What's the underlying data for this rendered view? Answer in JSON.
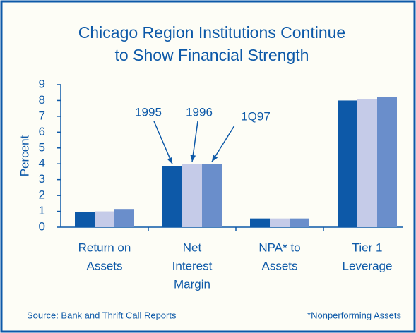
{
  "chart_data": {
    "type": "bar",
    "title": [
      "Chicago Region Institutions Continue",
      "to Show Financial Strength"
    ],
    "y_label": "Percent",
    "categories": [
      [
        "Return on",
        "Assets"
      ],
      [
        "Net",
        "Interest",
        "Margin"
      ],
      [
        "NPA* to",
        "Assets"
      ],
      [
        "Tier 1",
        "Leverage"
      ]
    ],
    "series": [
      {
        "name": "1995",
        "color": "#0d59a8",
        "values": [
          0.95,
          3.85,
          0.55,
          8.0
        ]
      },
      {
        "name": "1996",
        "color": "#c5cbe8",
        "values": [
          1.0,
          4.0,
          0.55,
          8.1
        ]
      },
      {
        "name": "1Q97",
        "color": "#6a8ecb",
        "values": [
          1.15,
          4.0,
          0.55,
          8.2
        ]
      }
    ],
    "ylim": [
      0,
      9
    ],
    "yticks": [
      0,
      1,
      2,
      3,
      4,
      5,
      6,
      7,
      8,
      9
    ],
    "source": "Source:  Bank and Thrift Call Reports",
    "footnote": "*Nonperforming Assets"
  }
}
